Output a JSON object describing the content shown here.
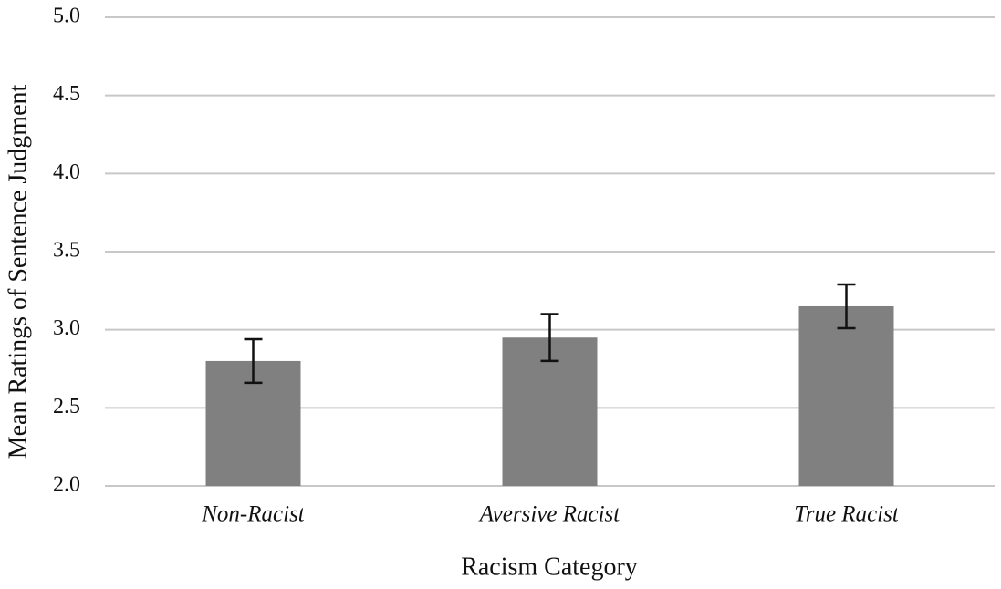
{
  "chart_data": {
    "type": "bar",
    "x_label": "Racism Category",
    "y_label": "Mean Ratings of Sentence Judgment",
    "categories": [
      "Non-Racist",
      "Aversive Racist",
      "True Racist"
    ],
    "values": [
      2.8,
      2.95,
      3.15
    ],
    "errors": [
      0.14,
      0.15,
      0.14
    ],
    "color": "#808080",
    "ylim": [
      2.0,
      5.0
    ],
    "yticks": [
      {
        "value": 2.0,
        "label": "2.0"
      },
      {
        "value": 2.5,
        "label": "2.5"
      },
      {
        "value": 3.0,
        "label": "3.0"
      },
      {
        "value": 3.5,
        "label": "3.5"
      },
      {
        "value": 4.0,
        "label": "4.0"
      },
      {
        "value": 4.5,
        "label": "4.5"
      },
      {
        "value": 5.0,
        "label": "5.0"
      }
    ],
    "grid": true
  }
}
